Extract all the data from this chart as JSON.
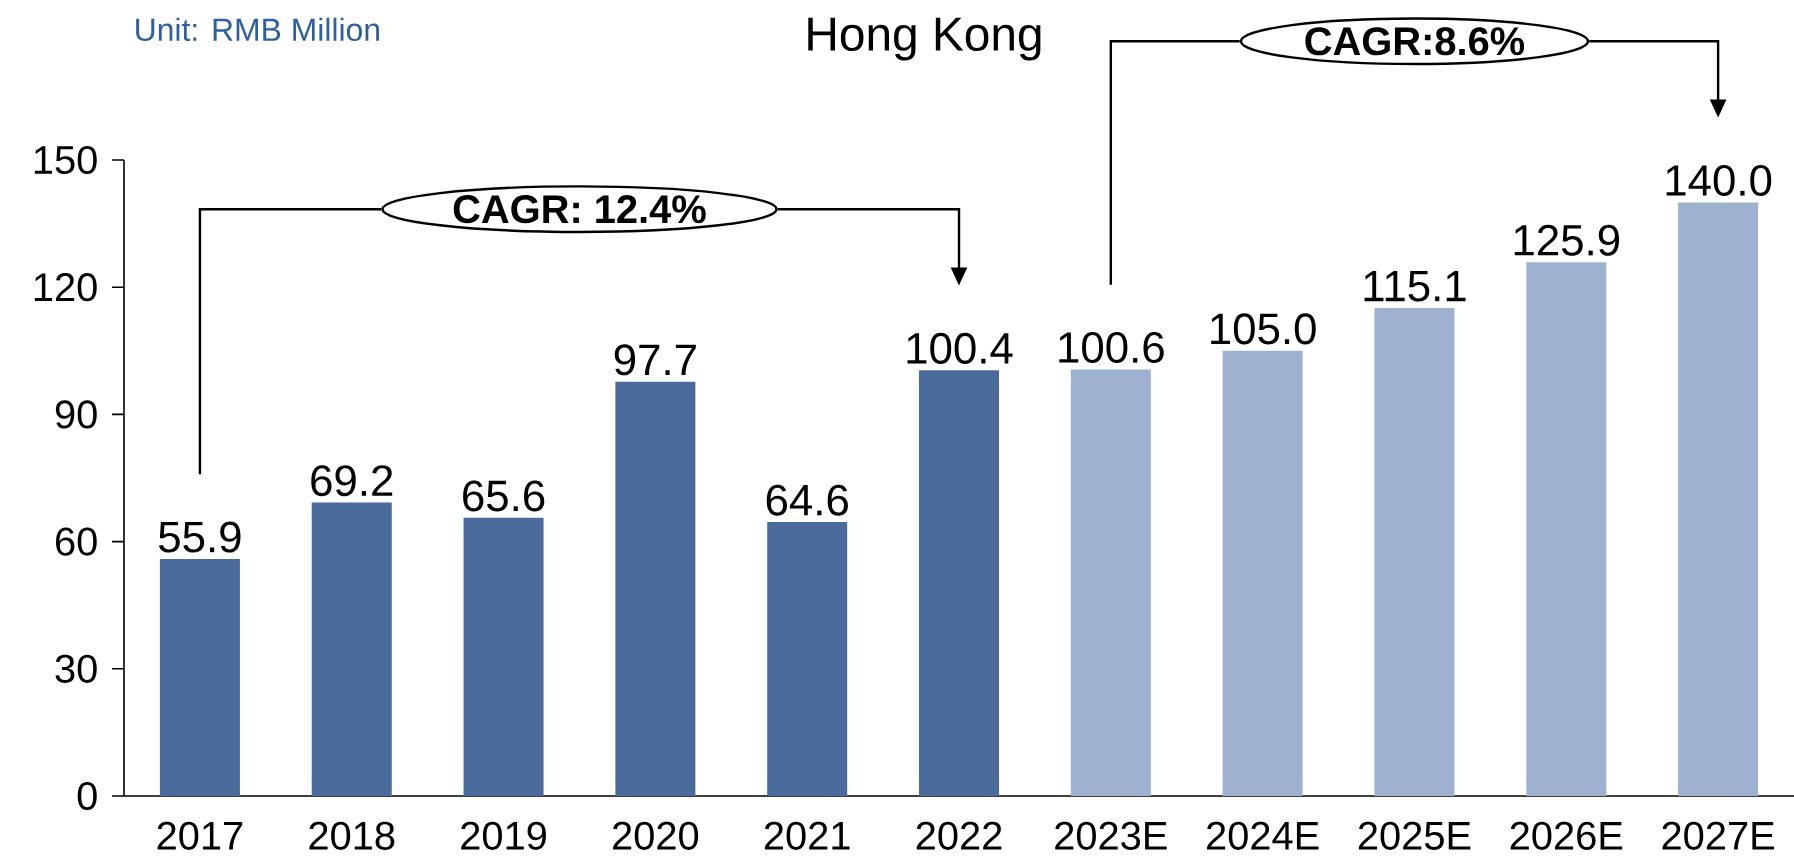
{
  "chart_data": {
    "type": "bar",
    "title": "Hong Kong",
    "ylabel": "Unit: RMB Million",
    "categories": [
      "2017",
      "2018",
      "2019",
      "2020",
      "2021",
      "2022",
      "2023E",
      "2024E",
      "2025E",
      "2026E",
      "2027E"
    ],
    "values": [
      55.9,
      69.2,
      65.6,
      97.7,
      64.6,
      100.4,
      100.6,
      105.0,
      115.1,
      125.9,
      140.0
    ],
    "value_labels": [
      "55.9",
      "69.2",
      "65.6",
      "97.7",
      "64.6",
      "100.4",
      "100.6",
      "105.0",
      "115.1",
      "125.9",
      "140.0"
    ],
    "colors": [
      "#4a6b9b",
      "#4a6b9b",
      "#4a6b9b",
      "#4a6b9b",
      "#4a6b9b",
      "#4a6b9b",
      "#9eb1cf",
      "#9eb1cf",
      "#9eb1cf",
      "#9eb1cf",
      "#9eb1cf"
    ],
    "ylim": [
      0,
      150
    ],
    "yticks": [
      0,
      30,
      60,
      90,
      120,
      150
    ],
    "grid": false,
    "annotations": [
      "CAGR: 12.4%",
      "CAGR:8.6%"
    ]
  }
}
